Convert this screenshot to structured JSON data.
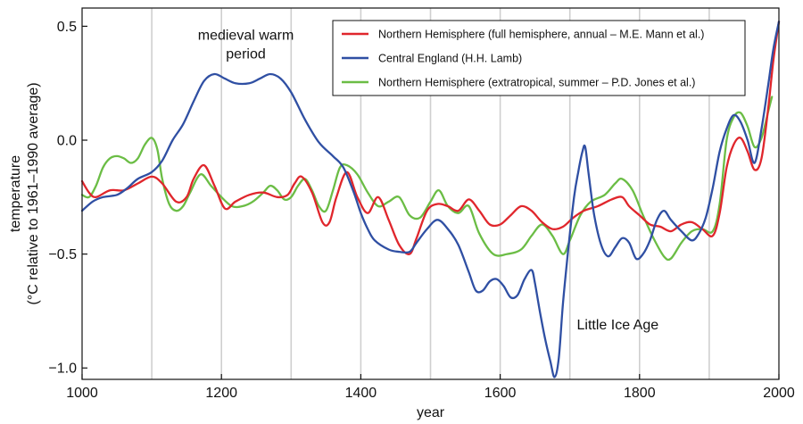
{
  "chart_data": {
    "type": "line",
    "xlabel": "year",
    "ylabel": [
      "temperature",
      "(°C relative to 1961–1990 average)"
    ],
    "xlim": [
      1000,
      2000
    ],
    "ylim": [
      -1.05,
      0.58
    ],
    "x_ticks": [
      1000,
      1200,
      1400,
      1600,
      1800,
      2000
    ],
    "x_tick_labels": [
      "1000",
      "1200",
      "1400",
      "1600",
      "1800",
      "2000"
    ],
    "y_ticks": [
      0.5,
      0.0,
      -0.5,
      -1.0
    ],
    "y_tick_labels": [
      "0.5",
      "0.0",
      "−0.5",
      "−1.0"
    ],
    "vertical_grid_years": [
      1100,
      1200,
      1300,
      1400,
      1500,
      1600,
      1700,
      1800,
      1900
    ],
    "legend": {
      "placement": "top-right"
    },
    "annotations": [
      {
        "text": [
          "medieval warm",
          "period"
        ],
        "x": 1235,
        "y": 0.44
      },
      {
        "text": [
          "Little Ice Age"
        ],
        "x": 1710,
        "y": -0.83
      }
    ],
    "series": [
      {
        "name": "Northern Hemisphere (full hemisphere, annual – M.E. Mann et al.)",
        "color": "#e0262c",
        "points": [
          [
            1000,
            -0.18
          ],
          [
            1010,
            -0.23
          ],
          [
            1020,
            -0.25
          ],
          [
            1040,
            -0.22
          ],
          [
            1060,
            -0.22
          ],
          [
            1080,
            -0.19
          ],
          [
            1100,
            -0.16
          ],
          [
            1115,
            -0.19
          ],
          [
            1135,
            -0.27
          ],
          [
            1150,
            -0.25
          ],
          [
            1160,
            -0.17
          ],
          [
            1175,
            -0.11
          ],
          [
            1190,
            -0.2
          ],
          [
            1205,
            -0.3
          ],
          [
            1220,
            -0.27
          ],
          [
            1240,
            -0.24
          ],
          [
            1260,
            -0.23
          ],
          [
            1280,
            -0.25
          ],
          [
            1295,
            -0.24
          ],
          [
            1305,
            -0.19
          ],
          [
            1315,
            -0.16
          ],
          [
            1330,
            -0.23
          ],
          [
            1345,
            -0.36
          ],
          [
            1355,
            -0.36
          ],
          [
            1365,
            -0.25
          ],
          [
            1380,
            -0.14
          ],
          [
            1395,
            -0.25
          ],
          [
            1410,
            -0.32
          ],
          [
            1425,
            -0.25
          ],
          [
            1440,
            -0.35
          ],
          [
            1455,
            -0.46
          ],
          [
            1470,
            -0.5
          ],
          [
            1480,
            -0.43
          ],
          [
            1495,
            -0.31
          ],
          [
            1510,
            -0.28
          ],
          [
            1525,
            -0.29
          ],
          [
            1540,
            -0.31
          ],
          [
            1555,
            -0.26
          ],
          [
            1570,
            -0.31
          ],
          [
            1585,
            -0.37
          ],
          [
            1600,
            -0.37
          ],
          [
            1615,
            -0.33
          ],
          [
            1630,
            -0.29
          ],
          [
            1645,
            -0.31
          ],
          [
            1660,
            -0.36
          ],
          [
            1675,
            -0.39
          ],
          [
            1690,
            -0.38
          ],
          [
            1705,
            -0.34
          ],
          [
            1720,
            -0.31
          ],
          [
            1740,
            -0.29
          ],
          [
            1760,
            -0.26
          ],
          [
            1775,
            -0.25
          ],
          [
            1785,
            -0.29
          ],
          [
            1800,
            -0.33
          ],
          [
            1815,
            -0.37
          ],
          [
            1830,
            -0.38
          ],
          [
            1845,
            -0.4
          ],
          [
            1860,
            -0.37
          ],
          [
            1875,
            -0.36
          ],
          [
            1890,
            -0.39
          ],
          [
            1905,
            -0.42
          ],
          [
            1915,
            -0.32
          ],
          [
            1925,
            -0.12
          ],
          [
            1935,
            -0.02
          ],
          [
            1945,
            0.01
          ],
          [
            1955,
            -0.05
          ],
          [
            1965,
            -0.13
          ],
          [
            1975,
            -0.08
          ],
          [
            1985,
            0.15
          ],
          [
            1992,
            0.35
          ],
          [
            2000,
            0.52
          ]
        ]
      },
      {
        "name": "Central England (H.H. Lamb)",
        "color": "#2f4fa3",
        "points": [
          [
            1000,
            -0.31
          ],
          [
            1015,
            -0.27
          ],
          [
            1030,
            -0.25
          ],
          [
            1050,
            -0.24
          ],
          [
            1065,
            -0.21
          ],
          [
            1080,
            -0.17
          ],
          [
            1100,
            -0.14
          ],
          [
            1115,
            -0.09
          ],
          [
            1130,
            0.0
          ],
          [
            1145,
            0.07
          ],
          [
            1160,
            0.17
          ],
          [
            1175,
            0.26
          ],
          [
            1190,
            0.29
          ],
          [
            1205,
            0.27
          ],
          [
            1220,
            0.25
          ],
          [
            1240,
            0.25
          ],
          [
            1255,
            0.27
          ],
          [
            1270,
            0.29
          ],
          [
            1285,
            0.27
          ],
          [
            1300,
            0.21
          ],
          [
            1320,
            0.09
          ],
          [
            1340,
            -0.01
          ],
          [
            1360,
            -0.07
          ],
          [
            1375,
            -0.12
          ],
          [
            1390,
            -0.23
          ],
          [
            1400,
            -0.32
          ],
          [
            1410,
            -0.39
          ],
          [
            1420,
            -0.44
          ],
          [
            1440,
            -0.48
          ],
          [
            1455,
            -0.49
          ],
          [
            1470,
            -0.49
          ],
          [
            1480,
            -0.45
          ],
          [
            1495,
            -0.39
          ],
          [
            1510,
            -0.35
          ],
          [
            1525,
            -0.39
          ],
          [
            1540,
            -0.46
          ],
          [
            1555,
            -0.58
          ],
          [
            1565,
            -0.66
          ],
          [
            1575,
            -0.66
          ],
          [
            1585,
            -0.62
          ],
          [
            1595,
            -0.61
          ],
          [
            1605,
            -0.64
          ],
          [
            1615,
            -0.69
          ],
          [
            1625,
            -0.68
          ],
          [
            1635,
            -0.61
          ],
          [
            1645,
            -0.57
          ],
          [
            1650,
            -0.63
          ],
          [
            1658,
            -0.77
          ],
          [
            1665,
            -0.88
          ],
          [
            1672,
            -0.97
          ],
          [
            1678,
            -1.04
          ],
          [
            1684,
            -0.96
          ],
          [
            1690,
            -0.72
          ],
          [
            1698,
            -0.47
          ],
          [
            1706,
            -0.25
          ],
          [
            1712,
            -0.14
          ],
          [
            1718,
            -0.05
          ],
          [
            1722,
            -0.03
          ],
          [
            1727,
            -0.15
          ],
          [
            1735,
            -0.33
          ],
          [
            1745,
            -0.46
          ],
          [
            1755,
            -0.51
          ],
          [
            1765,
            -0.47
          ],
          [
            1775,
            -0.43
          ],
          [
            1785,
            -0.45
          ],
          [
            1795,
            -0.52
          ],
          [
            1805,
            -0.5
          ],
          [
            1815,
            -0.44
          ],
          [
            1825,
            -0.35
          ],
          [
            1835,
            -0.31
          ],
          [
            1845,
            -0.35
          ],
          [
            1860,
            -0.4
          ],
          [
            1875,
            -0.44
          ],
          [
            1885,
            -0.41
          ],
          [
            1895,
            -0.34
          ],
          [
            1905,
            -0.21
          ],
          [
            1915,
            -0.05
          ],
          [
            1925,
            0.05
          ],
          [
            1935,
            0.11
          ],
          [
            1945,
            0.08
          ],
          [
            1955,
            0.0
          ],
          [
            1965,
            -0.1
          ],
          [
            1975,
            0.05
          ],
          [
            1985,
            0.25
          ],
          [
            1992,
            0.4
          ],
          [
            2000,
            0.52
          ]
        ]
      },
      {
        "name": "Northern Hemisphere (extratropical, summer – P.D. Jones et al.)",
        "color": "#6bbd45",
        "points": [
          [
            1000,
            -0.24
          ],
          [
            1010,
            -0.25
          ],
          [
            1020,
            -0.2
          ],
          [
            1030,
            -0.12
          ],
          [
            1040,
            -0.08
          ],
          [
            1050,
            -0.07
          ],
          [
            1060,
            -0.08
          ],
          [
            1070,
            -0.1
          ],
          [
            1080,
            -0.08
          ],
          [
            1090,
            -0.02
          ],
          [
            1100,
            0.01
          ],
          [
            1108,
            -0.04
          ],
          [
            1115,
            -0.17
          ],
          [
            1125,
            -0.28
          ],
          [
            1135,
            -0.31
          ],
          [
            1145,
            -0.29
          ],
          [
            1155,
            -0.23
          ],
          [
            1170,
            -0.15
          ],
          [
            1185,
            -0.2
          ],
          [
            1200,
            -0.25
          ],
          [
            1215,
            -0.29
          ],
          [
            1230,
            -0.29
          ],
          [
            1245,
            -0.27
          ],
          [
            1260,
            -0.23
          ],
          [
            1270,
            -0.2
          ],
          [
            1280,
            -0.22
          ],
          [
            1290,
            -0.26
          ],
          [
            1300,
            -0.25
          ],
          [
            1310,
            -0.2
          ],
          [
            1320,
            -0.17
          ],
          [
            1330,
            -0.22
          ],
          [
            1340,
            -0.29
          ],
          [
            1350,
            -0.31
          ],
          [
            1360,
            -0.22
          ],
          [
            1370,
            -0.12
          ],
          [
            1380,
            -0.11
          ],
          [
            1395,
            -0.15
          ],
          [
            1410,
            -0.23
          ],
          [
            1425,
            -0.29
          ],
          [
            1440,
            -0.27
          ],
          [
            1455,
            -0.25
          ],
          [
            1470,
            -0.33
          ],
          [
            1485,
            -0.34
          ],
          [
            1500,
            -0.27
          ],
          [
            1512,
            -0.22
          ],
          [
            1525,
            -0.29
          ],
          [
            1540,
            -0.32
          ],
          [
            1555,
            -0.29
          ],
          [
            1570,
            -0.41
          ],
          [
            1590,
            -0.5
          ],
          [
            1610,
            -0.5
          ],
          [
            1630,
            -0.48
          ],
          [
            1645,
            -0.42
          ],
          [
            1660,
            -0.37
          ],
          [
            1675,
            -0.42
          ],
          [
            1690,
            -0.5
          ],
          [
            1700,
            -0.44
          ],
          [
            1715,
            -0.33
          ],
          [
            1730,
            -0.27
          ],
          [
            1750,
            -0.24
          ],
          [
            1765,
            -0.19
          ],
          [
            1775,
            -0.17
          ],
          [
            1790,
            -0.22
          ],
          [
            1805,
            -0.33
          ],
          [
            1820,
            -0.43
          ],
          [
            1835,
            -0.51
          ],
          [
            1845,
            -0.52
          ],
          [
            1860,
            -0.45
          ],
          [
            1875,
            -0.4
          ],
          [
            1890,
            -0.39
          ],
          [
            1905,
            -0.4
          ],
          [
            1915,
            -0.28
          ],
          [
            1925,
            0.0
          ],
          [
            1935,
            0.1
          ],
          [
            1945,
            0.12
          ],
          [
            1955,
            0.06
          ],
          [
            1965,
            -0.03
          ],
          [
            1975,
            0.01
          ],
          [
            1985,
            0.13
          ],
          [
            1990,
            0.19
          ]
        ]
      }
    ]
  }
}
